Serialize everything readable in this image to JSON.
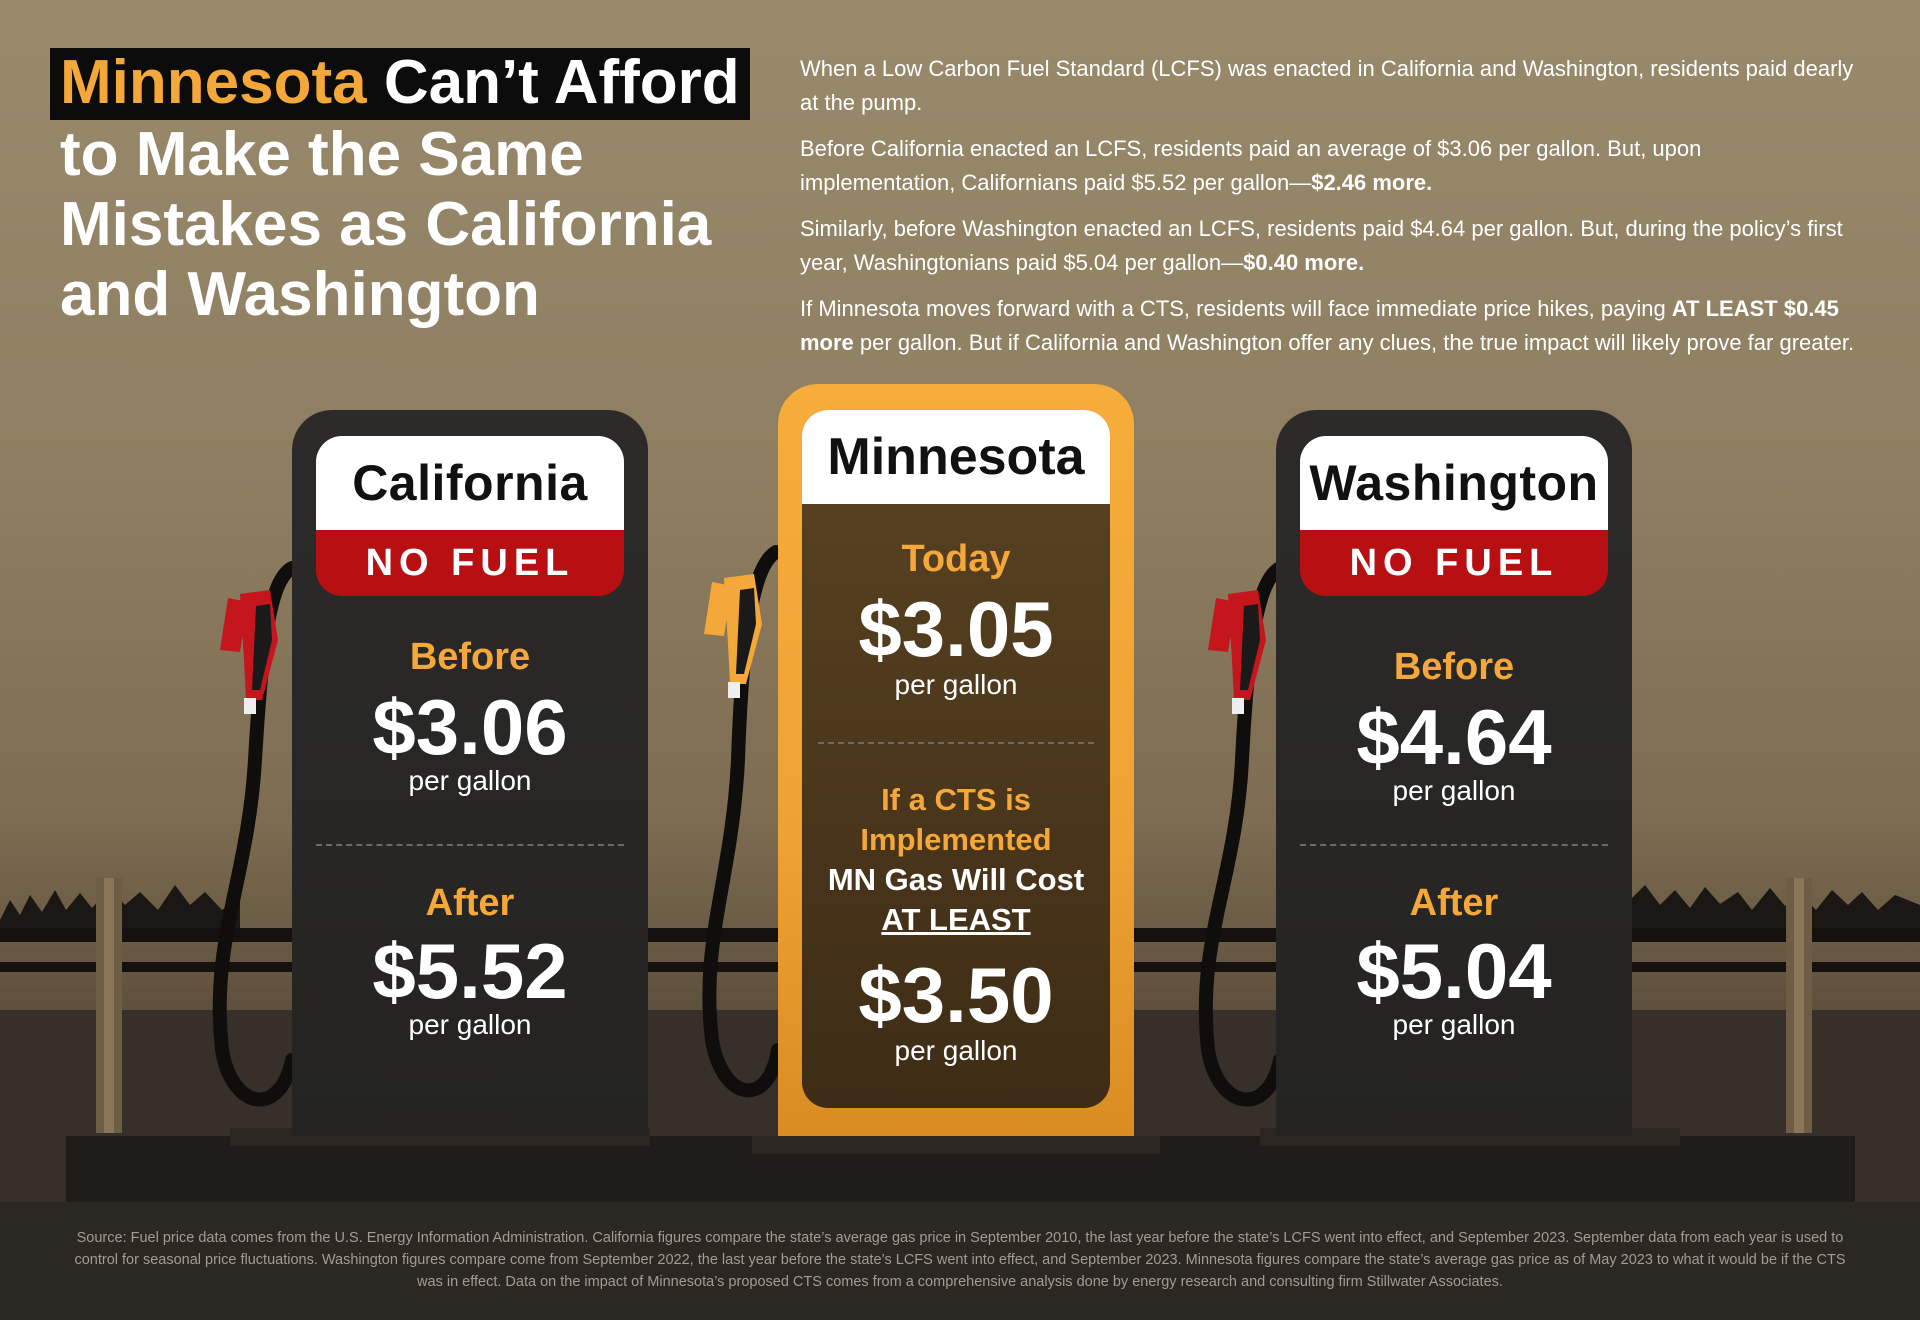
{
  "title": {
    "highlight": "Minnesota",
    "line1_rest": " Can’t Afford",
    "line2": "to Make the Same",
    "line3": "Mistakes as California",
    "line4": "and Washington"
  },
  "intro": {
    "p1": "When a Low Carbon Fuel Standard (LCFS) was enacted in California and Washington, residents paid dearly at the pump.",
    "p2_text": "Before California enacted an LCFS, residents paid an average of $3.06 per gallon. But, upon implementation, Californians paid $5.52 per gallon—",
    "p2_bold": "$2.46 more.",
    "p3_text": "Similarly, before Washington enacted an LCFS, residents paid $4.64 per gallon. But, during the policy’s first year, Washingtonians paid $5.04 per gallon—",
    "p3_bold": "$0.40 more.",
    "p4_text1": "If Minnesota moves forward with a CTS, residents will face immediate price hikes, paying ",
    "p4_bold": "AT LEAST $0.45 more",
    "p4_text2": " per gallon. But if California and Washington offer any clues, the true impact will likely prove far greater."
  },
  "pumps": {
    "california": {
      "name": "California",
      "status": "NO FUEL",
      "before_label": "Before",
      "before_price": "$3.06",
      "after_label": "After",
      "after_price": "$5.52",
      "unit": "per gallon"
    },
    "minnesota": {
      "name": "Minnesota",
      "today_label": "Today",
      "today_price": "$3.05",
      "unit": "per gallon",
      "cts_line1": "If a CTS is",
      "cts_line2": "Implemented",
      "cts_line3": "MN Gas Will Cost",
      "cts_line4": "AT LEAST",
      "cts_price": "$3.50"
    },
    "washington": {
      "name": "Washington",
      "status": "NO FUEL",
      "before_label": "Before",
      "before_price": "$4.64",
      "after_label": "After",
      "after_price": "$5.04",
      "unit": "per gallon"
    }
  },
  "colors": {
    "accent_orange": "#f5a83a",
    "no_fuel_red": "#b80f13",
    "pump_dark": "#2a2927",
    "nozzle_red": "#c4161c"
  },
  "footer": {
    "source": "Source: Fuel price data comes from the U.S. Energy Information Administration. California figures compare the state’s average gas price in September 2010, the last year before the state’s LCFS went into effect, and September 2023. September data from each year is used to control for seasonal price fluctuations. Washington figures compare come from September 2022, the last year before the state’s LCFS went into effect, and September 2023. Minnesota figures compare the state’s average gas price as of May 2023 to what it would be if the CTS was in effect. Data on the impact of Minnesota’s proposed CTS comes from a comprehensive analysis done by energy research and consulting firm Stillwater Associates."
  }
}
